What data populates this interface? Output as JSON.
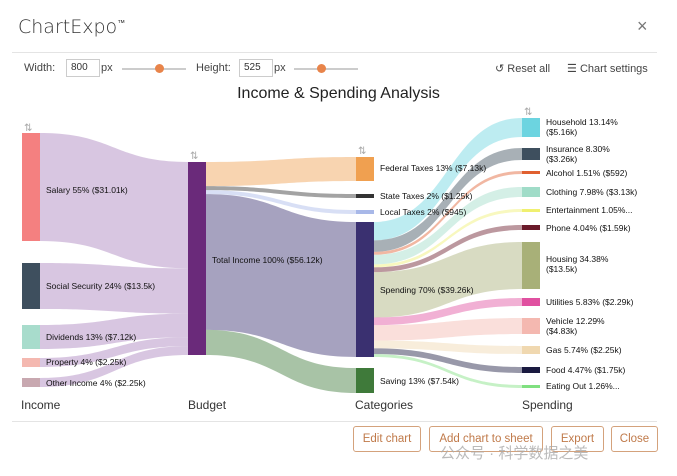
{
  "app": {
    "title": "ChartExpo",
    "tm": "™",
    "close_icon": "×"
  },
  "controls": {
    "width_label": "Width:",
    "width_value": "800",
    "width_unit": "px",
    "height_label": "Height:",
    "height_value": "525",
    "height_unit": "px",
    "reset_label": "Reset all",
    "settings_label": "Chart settings"
  },
  "chart_data": {
    "type": "sankey",
    "title": "Income & Spending Analysis",
    "columns": [
      "Income",
      "Budget",
      "Categories",
      "Spending"
    ],
    "nodes": [
      {
        "label": "Salary 55% ($31.01k)",
        "color": "#f48080"
      },
      {
        "label": "Social Security 24% ($13.5k)",
        "color": "#3e4f5e"
      },
      {
        "label": "Dividends 13% ($7.12k)",
        "color": "#a8dccc"
      },
      {
        "label": "Property 4% ($2.25k)",
        "color": "#f4b8b0"
      },
      {
        "label": "Other Income 4% ($2.25k)",
        "color": "#c8a8b0"
      },
      {
        "label": "Total Income 100% ($56.12k)",
        "color": "#6a2a7a"
      },
      {
        "label": "Federal Taxes 13% ($7.13k)",
        "color": "#f0a050"
      },
      {
        "label": "State Taxes 2% ($1.25k)",
        "color": "#333333"
      },
      {
        "label": "Local Taxes 2% ($945)",
        "color": "#a8b8e8"
      },
      {
        "label": "Spending 70% ($39.26k)",
        "color": "#3a3070"
      },
      {
        "label": "Saving 13% ($7.54k)",
        "color": "#3f7a3a"
      },
      {
        "label": "Household 13.14% ($5.16k)",
        "color": "#6cd4e0"
      },
      {
        "label": "Insurance 8.30% ($3.26k)",
        "color": "#3e4f5e"
      },
      {
        "label": "Alcohol 1.51% ($592)",
        "color": "#e06030"
      },
      {
        "label": "Clothing 7.98% ($3.13k)",
        "color": "#a0dcc8"
      },
      {
        "label": "Entertainment 1.05%...",
        "color": "#f0f070"
      },
      {
        "label": "Phone 4.04% ($1.59k)",
        "color": "#6a1a2a"
      },
      {
        "label": "Housing 34.38% ($13.5k)",
        "color": "#a8b078"
      },
      {
        "label": "Utilities 5.83% ($2.29k)",
        "color": "#e050a0"
      },
      {
        "label": "Vehicle 12.29% ($4.83k)",
        "color": "#f4b8b0"
      },
      {
        "label": "Gas 5.74% ($2.25k)",
        "color": "#f0d8b0"
      },
      {
        "label": "Food 4.47% ($1.75k)",
        "color": "#1a1a40"
      },
      {
        "label": "Eating Out 1.26%...",
        "color": "#80e080"
      }
    ]
  },
  "buttons": {
    "edit": "Edit chart",
    "add": "Add chart to sheet",
    "export": "Export",
    "close": "Close"
  },
  "watermark": "公众号 · 科学数据之美"
}
